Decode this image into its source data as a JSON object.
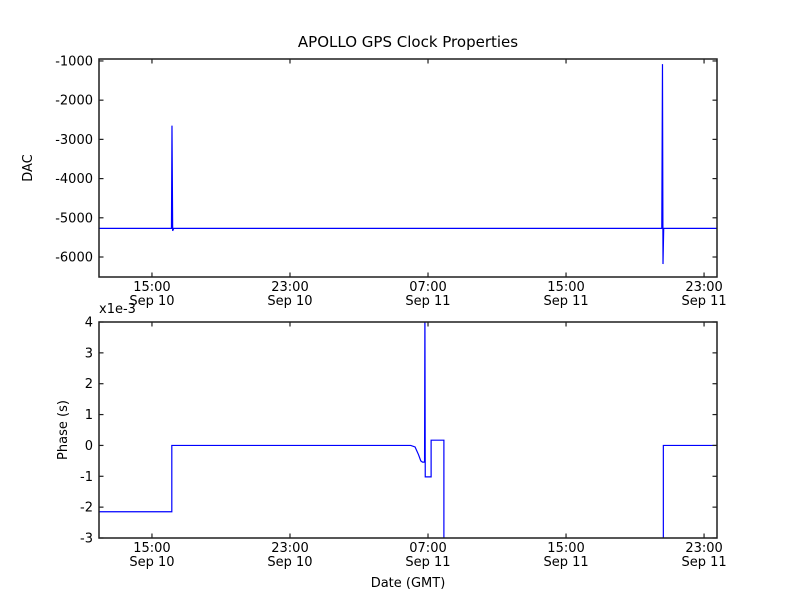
{
  "figure": {
    "title": "APOLLO GPS Clock Properties",
    "background": "#ffffff",
    "axis_color": "#1f1f1f",
    "line_color": "#0000ff"
  },
  "chart_data": [
    {
      "id": "dac",
      "type": "line",
      "title": "APOLLO GPS Clock Properties",
      "ylabel": "DAC",
      "x_unit": "hours since Sep 10 00:00 GMT",
      "xlim": [
        11.93,
        47.75
      ],
      "ylim": [
        -6510,
        -950
      ],
      "grid": false,
      "legend": null,
      "xticks": [
        {
          "t": 15,
          "time": "15:00",
          "date": "Sep 10"
        },
        {
          "t": 23,
          "time": "23:00",
          "date": "Sep 10"
        },
        {
          "t": 31,
          "time": "07:00",
          "date": "Sep 11"
        },
        {
          "t": 39,
          "time": "15:00",
          "date": "Sep 11"
        },
        {
          "t": 47,
          "time": "23:00",
          "date": "Sep 11"
        }
      ],
      "yticks": [
        {
          "v": -1000,
          "label": "-1000"
        },
        {
          "v": -2000,
          "label": "-2000"
        },
        {
          "v": -3000,
          "label": "-3000"
        },
        {
          "v": -4000,
          "label": "-4000"
        },
        {
          "v": -5000,
          "label": "-5000"
        },
        {
          "v": -6000,
          "label": "-6000"
        }
      ],
      "series": [
        {
          "name": "DAC",
          "color": "#0000ff",
          "baseline": -5270,
          "x": [
            11.93,
            16.13,
            16.16,
            16.2,
            16.26,
            44.55,
            44.59,
            44.62,
            44.66,
            47.75
          ],
          "y": [
            -5270,
            -5270,
            -2650,
            -5335,
            -5270,
            -5270,
            -1080,
            -6180,
            -5270,
            -5270
          ]
        }
      ]
    },
    {
      "id": "phase",
      "type": "line",
      "ylabel": "Phase (s)",
      "y_offset_label": "x1e-3",
      "y_unit": "s",
      "y_unit_scale": "1e-3",
      "xlabel": "Date (GMT)",
      "x_unit": "hours since Sep 10 00:00 GMT",
      "xlim": [
        11.93,
        47.75
      ],
      "ylim": [
        -3,
        4
      ],
      "grid": false,
      "legend": null,
      "xticks": [
        {
          "t": 15,
          "time": "15:00",
          "date": "Sep 10"
        },
        {
          "t": 23,
          "time": "23:00",
          "date": "Sep 10"
        },
        {
          "t": 31,
          "time": "07:00",
          "date": "Sep 11"
        },
        {
          "t": 39,
          "time": "15:00",
          "date": "Sep 11"
        },
        {
          "t": 47,
          "time": "23:00",
          "date": "Sep 11"
        }
      ],
      "yticks": [
        {
          "v": 4,
          "label": "4"
        },
        {
          "v": 3,
          "label": "3"
        },
        {
          "v": 2,
          "label": "2"
        },
        {
          "v": 1,
          "label": "1"
        },
        {
          "v": 0,
          "label": "0"
        },
        {
          "v": -1,
          "label": "-1"
        },
        {
          "v": -2,
          "label": "-2"
        },
        {
          "v": -3,
          "label": "-3"
        }
      ],
      "series": [
        {
          "name": "Phase",
          "color": "#0000ff",
          "x": [
            11.93,
            16.15,
            16.15,
            30.0,
            30.25,
            30.45,
            30.58,
            30.68,
            30.8,
            30.82,
            30.84,
            31.18,
            31.18,
            31.92,
            31.92,
            44.64,
            44.64,
            47.75
          ],
          "y": [
            -2.15,
            -2.15,
            0,
            0,
            -0.05,
            -0.3,
            -0.5,
            -0.54,
            -0.54,
            4.5,
            -1.02,
            -1.02,
            0.17,
            0.17,
            -3.6,
            -3.6,
            0,
            0
          ]
        }
      ]
    }
  ]
}
